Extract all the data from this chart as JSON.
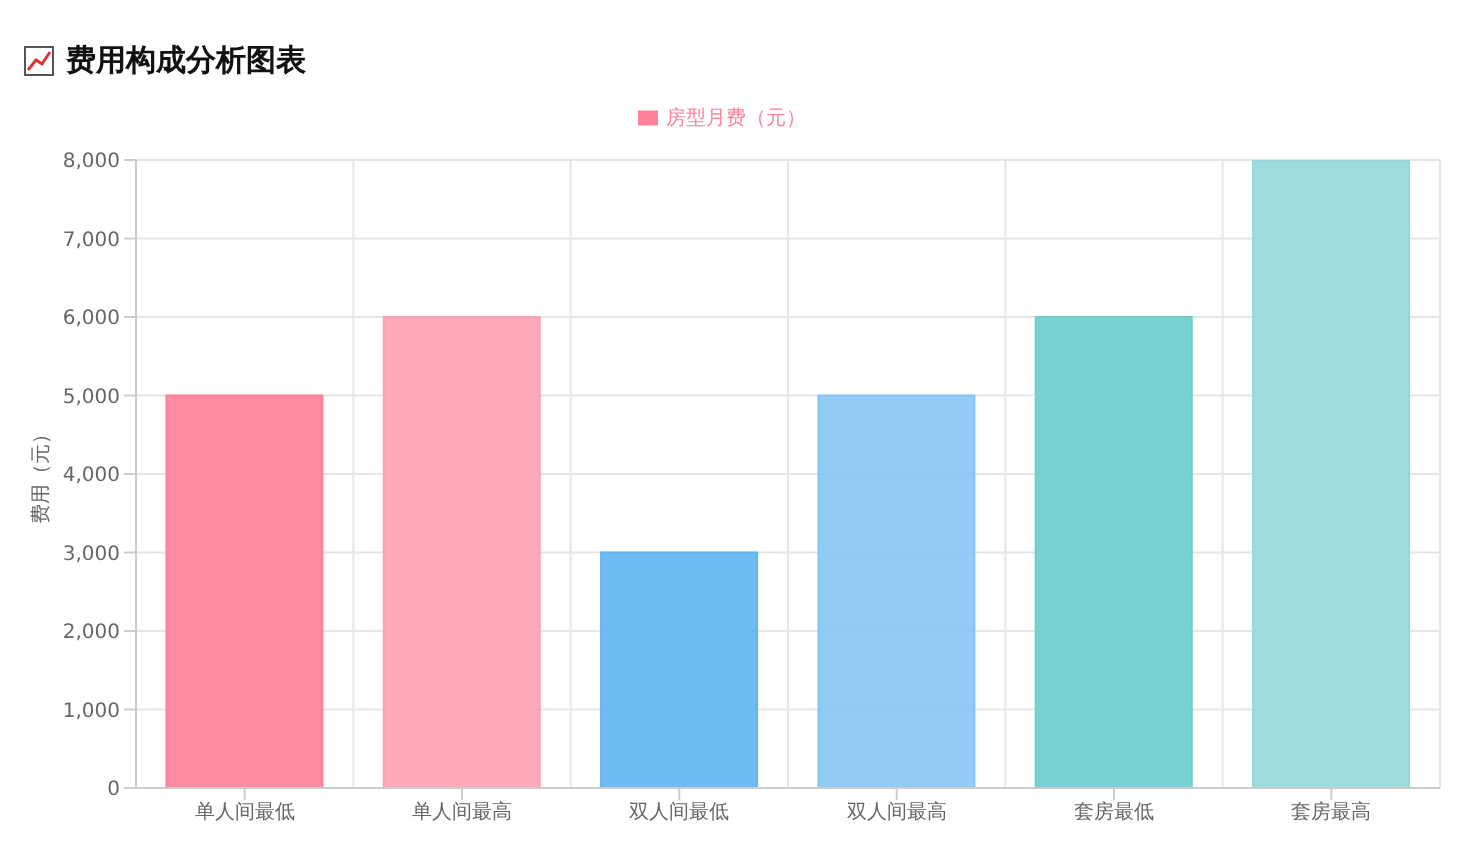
{
  "chart_data": {
    "type": "bar",
    "title": "费用构成分析图表",
    "ylabel": "费用（元）",
    "categories": [
      "单人间最低",
      "单人间最高",
      "双人间最低",
      "双人间最高",
      "套房最低",
      "套房最高"
    ],
    "series": [
      {
        "name": "房型月费（元）",
        "color": "#ff8099",
        "colors": [
          "#ff8099",
          "#ffa0b4",
          "#60b4ef",
          "#86c5f3",
          "#6ccccc",
          "#92d9d9"
        ],
        "values": [
          5000,
          6000,
          3000,
          5000,
          6000,
          8000
        ]
      }
    ],
    "ylim": [
      0,
      8000
    ],
    "yticks": [
      {
        "value": 0,
        "label": "0"
      },
      {
        "value": 1000,
        "label": "1,000"
      },
      {
        "value": 2000,
        "label": "2,000"
      },
      {
        "value": 3000,
        "label": "3,000"
      },
      {
        "value": 4000,
        "label": "4,000"
      },
      {
        "value": 5000,
        "label": "5,000"
      },
      {
        "value": 6000,
        "label": "6,000"
      },
      {
        "value": 7000,
        "label": "7,000"
      },
      {
        "value": 8000,
        "label": "8,000"
      }
    ],
    "grid": true,
    "legend": "top"
  }
}
